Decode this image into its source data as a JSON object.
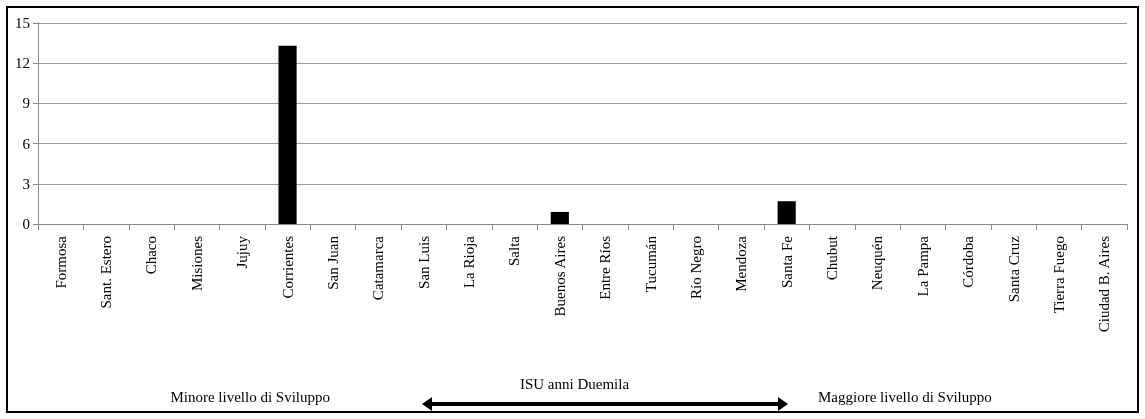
{
  "chart_data": {
    "type": "bar",
    "categories": [
      "Formosa",
      "Sant. Estero",
      "Chaco",
      "Misiones",
      "Jujuy",
      "Corrientes",
      "San Juan",
      "Catamarca",
      "San Luis",
      "La Rioja",
      "Salta",
      "Buenos Aires",
      "Entre Ríos",
      "Tucumán",
      "Río Negro",
      "Mendoza",
      "Santa Fe",
      "Chubut",
      "Neuquén",
      "La Pampa",
      "Córdoba",
      "Santa Cruz",
      "Tierra Fuego",
      "Ciudad B. Aires"
    ],
    "values": [
      0,
      0,
      0,
      0,
      0,
      13.3,
      0,
      0,
      0,
      0,
      0,
      0.9,
      0,
      0,
      0,
      0,
      1.7,
      0,
      0,
      0,
      0,
      0,
      0,
      0
    ],
    "color": "#000000",
    "ylim": [
      0,
      15
    ],
    "yticks": [
      0,
      3,
      6,
      9,
      12,
      15
    ],
    "grid": "y",
    "annotations": [
      "Minore livello di Sviluppo",
      "ISU anni Duemila",
      "Maggiore livello di Sviluppo"
    ]
  }
}
